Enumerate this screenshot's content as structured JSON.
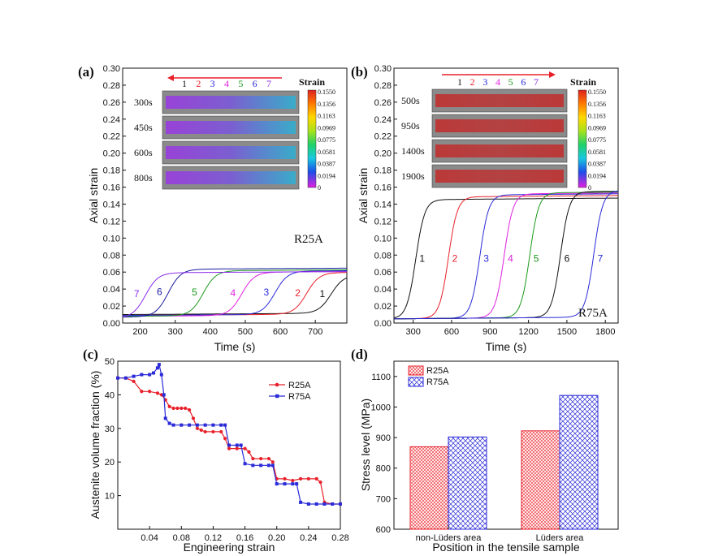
{
  "colors": {
    "black": "#111111",
    "red": "#e8202a",
    "blue": "#2a2ad8",
    "magenta": "#e020e0",
    "green": "#1a9a1a",
    "violet": "#8a2ae8",
    "navy": "#1a1aa0"
  },
  "chart_data": [
    {
      "panel": "(a)",
      "type": "line",
      "xlabel": "Time (s)",
      "ylabel": "Axial strain",
      "xlim": [
        150,
        790
      ],
      "ylim": [
        0,
        0.3
      ],
      "xticks": [
        200,
        300,
        400,
        500,
        600,
        700
      ],
      "yticks": [
        0.0,
        0.02,
        0.04,
        0.06,
        0.08,
        0.1,
        0.12,
        0.14,
        0.16,
        0.18,
        0.2,
        0.22,
        0.24,
        0.26,
        0.28,
        0.3
      ],
      "annotation": "R25A",
      "series": [
        {
          "name": "1",
          "color": "#111111",
          "center": 745,
          "base": 0.01,
          "plateau": 0.055
        },
        {
          "name": "2",
          "color": "#e8202a",
          "center": 675,
          "base": 0.009,
          "plateau": 0.058
        },
        {
          "name": "3",
          "color": "#2a2ad8",
          "center": 585,
          "base": 0.009,
          "plateau": 0.06
        },
        {
          "name": "4",
          "color": "#e020e0",
          "center": 490,
          "base": 0.008,
          "plateau": 0.059
        },
        {
          "name": "5",
          "color": "#1a9a1a",
          "center": 380,
          "base": 0.008,
          "plateau": 0.061
        },
        {
          "name": "6",
          "color": "#1a1aa0",
          "center": 280,
          "base": 0.007,
          "plateau": 0.063
        },
        {
          "name": "7",
          "color": "#8a2ae8",
          "center": 215,
          "base": 0.006,
          "plateau": 0.059
        }
      ],
      "inset": {
        "arrow_direction": "left",
        "positions": [
          "1",
          "2",
          "3",
          "4",
          "5",
          "6",
          "7"
        ],
        "times": [
          "300s",
          "450s",
          "600s",
          "800s"
        ],
        "colorbar_title": "Strain",
        "colorbar_ticks": [
          "0.1550",
          "0.1356",
          "0.1163",
          "0.0969",
          "0.0775",
          "0.0581",
          "0.0387",
          "0.0194",
          "0"
        ]
      }
    },
    {
      "panel": "(b)",
      "type": "line",
      "xlabel": "Time (s)",
      "ylabel": "Axial strain",
      "xlim": [
        150,
        1900
      ],
      "ylim": [
        0,
        0.3
      ],
      "xticks": [
        300,
        600,
        900,
        1200,
        1500,
        1800
      ],
      "yticks": [
        0.0,
        0.02,
        0.04,
        0.06,
        0.08,
        0.1,
        0.12,
        0.14,
        0.16,
        0.18,
        0.2,
        0.22,
        0.24,
        0.26,
        0.28,
        0.3
      ],
      "annotation": "R75A",
      "series": [
        {
          "name": "1",
          "color": "#111111",
          "center": 320,
          "base": 0.005,
          "plateau": 0.145
        },
        {
          "name": "2",
          "color": "#e8202a",
          "center": 575,
          "base": 0.005,
          "plateau": 0.148
        },
        {
          "name": "3",
          "color": "#2a2ad8",
          "center": 820,
          "base": 0.005,
          "plateau": 0.15
        },
        {
          "name": "4",
          "color": "#e020e0",
          "center": 1010,
          "base": 0.005,
          "plateau": 0.151
        },
        {
          "name": "5",
          "color": "#1a9a1a",
          "center": 1210,
          "base": 0.005,
          "plateau": 0.152
        },
        {
          "name": "6",
          "color": "#111111",
          "center": 1450,
          "base": 0.005,
          "plateau": 0.153
        },
        {
          "name": "7",
          "color": "#2a2ad8",
          "center": 1710,
          "base": 0.005,
          "plateau": 0.154
        }
      ],
      "inset": {
        "arrow_direction": "right",
        "positions": [
          "1",
          "2",
          "3",
          "4",
          "5",
          "6",
          "7"
        ],
        "times": [
          "500s",
          "950s",
          "1400s",
          "1900s"
        ],
        "colorbar_title": "Strain",
        "colorbar_ticks": [
          "0.1550",
          "0.1356",
          "0.1163",
          "0.0969",
          "0.0775",
          "0.0581",
          "0.0387",
          "0.0194",
          "0"
        ]
      }
    },
    {
      "panel": "(c)",
      "type": "line",
      "xlabel": "Engineering strain",
      "ylabel": "Austenite volume fraction (%)",
      "xlim": [
        0.0,
        0.28
      ],
      "ylim": [
        0,
        50
      ],
      "xticks": [
        0.04,
        0.08,
        0.12,
        0.16,
        0.2,
        0.24,
        0.28
      ],
      "yticks": [
        10,
        20,
        30,
        40,
        50
      ],
      "legend": "top-right",
      "series": [
        {
          "name": "R25A",
          "color": "#e8202a",
          "marker": "circle",
          "x": [
            0.0,
            0.01,
            0.02,
            0.03,
            0.04,
            0.05,
            0.055,
            0.06,
            0.065,
            0.07,
            0.075,
            0.08,
            0.085,
            0.09,
            0.095,
            0.1,
            0.105,
            0.11,
            0.12,
            0.13,
            0.135,
            0.14,
            0.15,
            0.16,
            0.165,
            0.17,
            0.18,
            0.19,
            0.195,
            0.2,
            0.21,
            0.22,
            0.23,
            0.24,
            0.25,
            0.255,
            0.26,
            0.27,
            0.28
          ],
          "y": [
            45,
            45,
            44,
            41,
            41,
            40.5,
            40,
            38.5,
            36.5,
            36,
            36,
            36,
            36,
            35.5,
            33,
            30,
            29.5,
            29,
            29,
            29,
            27,
            24,
            24,
            24,
            23,
            21,
            21,
            21,
            20,
            15,
            15,
            14.5,
            15,
            15,
            15,
            14,
            8,
            7.5,
            7.5
          ]
        },
        {
          "name": "R75A",
          "color": "#2a2ad8",
          "marker": "square",
          "x": [
            0.0,
            0.01,
            0.02,
            0.03,
            0.04,
            0.045,
            0.05,
            0.052,
            0.055,
            0.058,
            0.06,
            0.065,
            0.07,
            0.08,
            0.09,
            0.1,
            0.11,
            0.12,
            0.13,
            0.135,
            0.14,
            0.15,
            0.155,
            0.16,
            0.17,
            0.18,
            0.19,
            0.195,
            0.2,
            0.21,
            0.22,
            0.225,
            0.23,
            0.24,
            0.25,
            0.26,
            0.27,
            0.28
          ],
          "y": [
            45,
            45,
            45.5,
            46,
            46,
            46.5,
            48,
            49,
            46,
            40,
            33,
            31.5,
            31,
            31,
            31,
            31,
            31,
            31,
            31,
            31,
            25,
            25,
            25,
            19.5,
            19,
            19,
            19,
            19,
            13.5,
            13.5,
            13.5,
            13.5,
            8,
            7.5,
            7.5,
            7.5,
            7.5,
            7.5
          ]
        }
      ]
    },
    {
      "panel": "(d)",
      "type": "bar",
      "xlabel": "Position in the tensile sample",
      "ylabel": "Stress level (MPa)",
      "ylim": [
        600,
        1150
      ],
      "yticks": [
        600,
        700,
        800,
        900,
        1000,
        1100
      ],
      "categories": [
        "non-Lüders area",
        "Lüders area"
      ],
      "legend": "top-left",
      "series": [
        {
          "name": "R25A",
          "color": "#e8202a",
          "pattern": "dense-dots",
          "values": [
            870,
            922
          ]
        },
        {
          "name": "R75A",
          "color": "#2a2ad8",
          "pattern": "crosshatch",
          "values": [
            902,
            1038
          ]
        }
      ]
    }
  ]
}
